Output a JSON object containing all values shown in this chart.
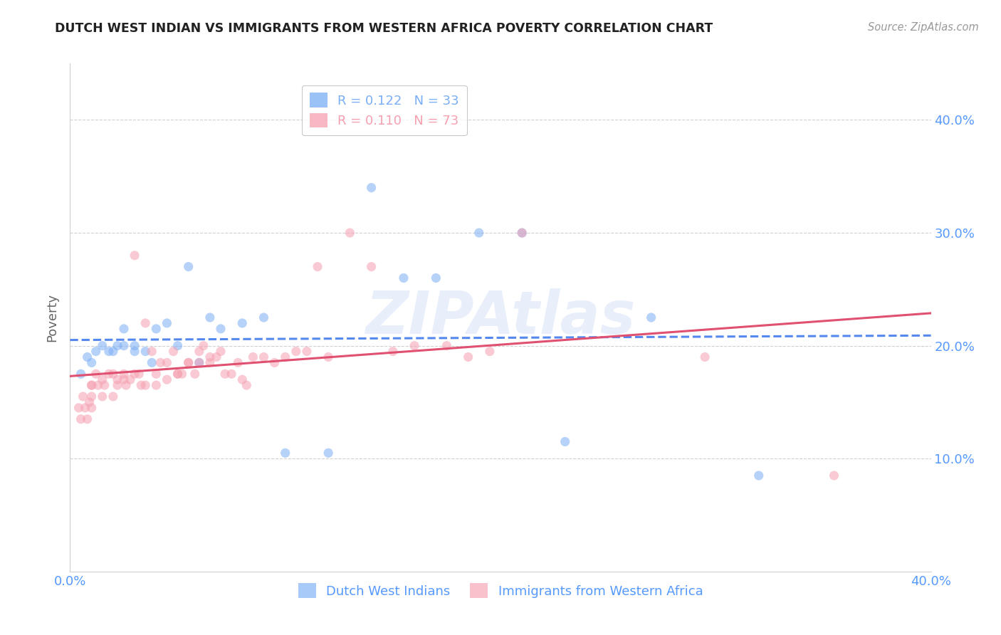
{
  "title": "DUTCH WEST INDIAN VS IMMIGRANTS FROM WESTERN AFRICA POVERTY CORRELATION CHART",
  "source": "Source: ZipAtlas.com",
  "ylabel": "Poverty",
  "xlim": [
    0.0,
    0.4
  ],
  "ylim": [
    0.0,
    0.45
  ],
  "ytick_positions": [
    0.1,
    0.2,
    0.3,
    0.4
  ],
  "ytick_labels": [
    "10.0%",
    "20.0%",
    "30.0%",
    "40.0%"
  ],
  "xtick_positions": [
    0.0,
    0.1,
    0.2,
    0.3,
    0.4
  ],
  "xtick_labels": [
    "0.0%",
    "",
    "",
    "",
    "40.0%"
  ],
  "grid_color": "#d0d0d0",
  "background_color": "#ffffff",
  "watermark": "ZIPAtlas",
  "series": [
    {
      "name": "Dutch West Indians",
      "color": "#7aaef5",
      "R": 0.122,
      "N": 33,
      "trend_dashed": true,
      "trend_color": "#5588ee",
      "x": [
        0.005,
        0.008,
        0.01,
        0.012,
        0.015,
        0.018,
        0.02,
        0.022,
        0.025,
        0.025,
        0.03,
        0.03,
        0.035,
        0.038,
        0.04,
        0.045,
        0.05,
        0.055,
        0.06,
        0.065,
        0.07,
        0.08,
        0.09,
        0.1,
        0.12,
        0.14,
        0.155,
        0.17,
        0.19,
        0.21,
        0.23,
        0.27,
        0.32
      ],
      "y": [
        0.175,
        0.19,
        0.185,
        0.195,
        0.2,
        0.195,
        0.195,
        0.2,
        0.2,
        0.215,
        0.195,
        0.2,
        0.195,
        0.185,
        0.215,
        0.22,
        0.2,
        0.27,
        0.185,
        0.225,
        0.215,
        0.22,
        0.225,
        0.105,
        0.105,
        0.34,
        0.26,
        0.26,
        0.3,
        0.3,
        0.115,
        0.225,
        0.085
      ]
    },
    {
      "name": "Immigrants from Western Africa",
      "color": "#f5a0b0",
      "R": 0.11,
      "N": 73,
      "trend_dashed": false,
      "trend_color": "#e05070",
      "x": [
        0.004,
        0.005,
        0.006,
        0.007,
        0.008,
        0.009,
        0.01,
        0.01,
        0.01,
        0.01,
        0.012,
        0.013,
        0.015,
        0.015,
        0.016,
        0.018,
        0.02,
        0.02,
        0.022,
        0.022,
        0.025,
        0.025,
        0.026,
        0.028,
        0.03,
        0.03,
        0.032,
        0.033,
        0.035,
        0.035,
        0.038,
        0.04,
        0.04,
        0.042,
        0.045,
        0.045,
        0.048,
        0.05,
        0.05,
        0.052,
        0.055,
        0.055,
        0.058,
        0.06,
        0.06,
        0.062,
        0.065,
        0.065,
        0.068,
        0.07,
        0.072,
        0.075,
        0.078,
        0.08,
        0.082,
        0.085,
        0.09,
        0.095,
        0.1,
        0.105,
        0.11,
        0.115,
        0.12,
        0.13,
        0.14,
        0.15,
        0.16,
        0.175,
        0.185,
        0.195,
        0.21,
        0.295,
        0.355
      ],
      "y": [
        0.145,
        0.135,
        0.155,
        0.145,
        0.135,
        0.15,
        0.155,
        0.145,
        0.165,
        0.165,
        0.175,
        0.165,
        0.155,
        0.17,
        0.165,
        0.175,
        0.155,
        0.175,
        0.165,
        0.17,
        0.175,
        0.17,
        0.165,
        0.17,
        0.28,
        0.175,
        0.175,
        0.165,
        0.165,
        0.22,
        0.195,
        0.175,
        0.165,
        0.185,
        0.17,
        0.185,
        0.195,
        0.175,
        0.175,
        0.175,
        0.185,
        0.185,
        0.175,
        0.185,
        0.195,
        0.2,
        0.185,
        0.19,
        0.19,
        0.195,
        0.175,
        0.175,
        0.185,
        0.17,
        0.165,
        0.19,
        0.19,
        0.185,
        0.19,
        0.195,
        0.195,
        0.27,
        0.19,
        0.3,
        0.27,
        0.195,
        0.2,
        0.2,
        0.19,
        0.195,
        0.3,
        0.19,
        0.085
      ]
    }
  ],
  "legend_box": {
    "facecolor": "#ffffff",
    "edgecolor": "#bbbbbb"
  },
  "title_color": "#222222",
  "axis_label_color": "#5599ff",
  "ylabel_color": "#666666",
  "marker_size": 90,
  "marker_alpha": 0.55,
  "trend_linewidth": 2.2
}
